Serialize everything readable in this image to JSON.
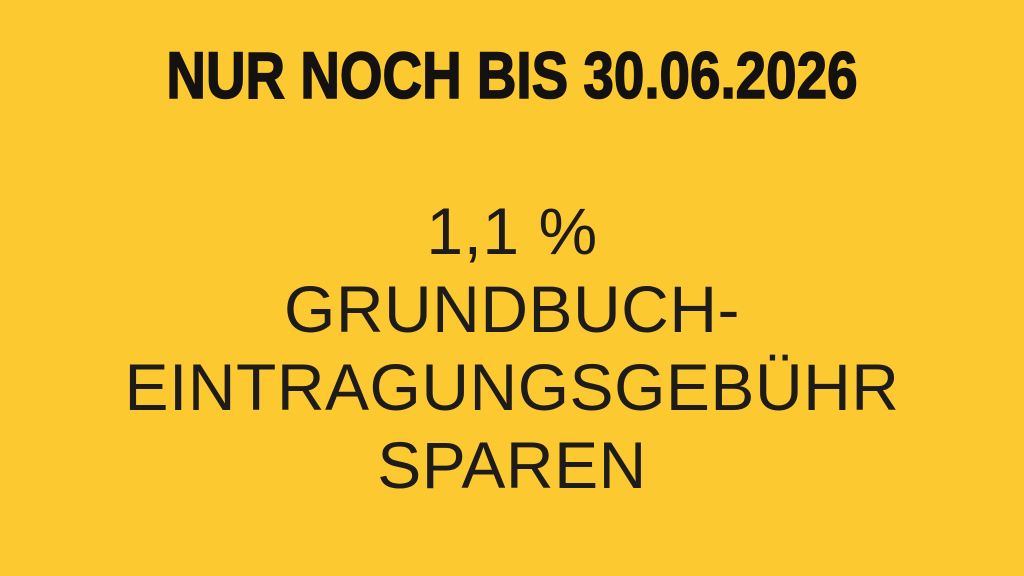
{
  "colors": {
    "background": "#FDC930",
    "headline_text": "#141210",
    "body_text": "#1E1C19"
  },
  "headline": {
    "text": "NUR NOCH BIS 30.06.2026"
  },
  "message": {
    "lines": [
      "1,1 %",
      "GRUNDBUCH-",
      "EINTRAGUNGSGEBÜHR",
      "SPAREN"
    ]
  }
}
